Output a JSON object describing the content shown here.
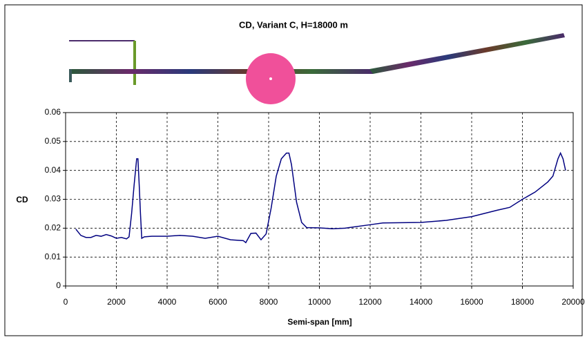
{
  "chart_data": {
    "type": "line",
    "title": "CD, Variant C, H=18000 m",
    "x_label": "Semi-span [mm]",
    "y_label": "CD",
    "xlim": [
      0,
      20000
    ],
    "xticks": [
      0,
      2000,
      4000,
      6000,
      8000,
      10000,
      12000,
      14000,
      16000,
      18000,
      20000
    ],
    "ylim": [
      0,
      0.06
    ],
    "yticks": [
      0,
      0.01,
      0.02,
      0.03,
      0.04,
      0.05,
      0.06
    ],
    "grid": true,
    "x": [
      400,
      600,
      800,
      1000,
      1200,
      1400,
      1600,
      1800,
      2000,
      2200,
      2400,
      2500,
      2600,
      2700,
      2800,
      2850,
      2900,
      2950,
      3000,
      3100,
      3400,
      4000,
      4500,
      5000,
      5500,
      6000,
      6500,
      7000,
      7100,
      7300,
      7500,
      7700,
      7900,
      8100,
      8300,
      8500,
      8700,
      8800,
      8900,
      9100,
      9300,
      9500,
      10000,
      10500,
      11000,
      12000,
      12500,
      14000,
      15000,
      16000,
      17000,
      17500,
      18000,
      18500,
      19000,
      19200,
      19400,
      19500,
      19600,
      19700
    ],
    "series": [
      {
        "color": "#000080",
        "values": [
          0.0197,
          0.0175,
          0.0168,
          0.0168,
          0.0175,
          0.0172,
          0.0178,
          0.0173,
          0.0165,
          0.0168,
          0.0163,
          0.017,
          0.025,
          0.035,
          0.044,
          0.044,
          0.035,
          0.025,
          0.0165,
          0.017,
          0.0172,
          0.0172,
          0.0175,
          0.0172,
          0.0165,
          0.0172,
          0.016,
          0.0157,
          0.015,
          0.0182,
          0.0183,
          0.016,
          0.018,
          0.027,
          0.038,
          0.044,
          0.046,
          0.046,
          0.042,
          0.029,
          0.022,
          0.0202,
          0.0201,
          0.0198,
          0.02,
          0.0212,
          0.0218,
          0.022,
          0.0227,
          0.024,
          0.0262,
          0.0272,
          0.03,
          0.0325,
          0.036,
          0.038,
          0.044,
          0.046,
          0.044,
          0.04
        ]
      }
    ]
  }
}
